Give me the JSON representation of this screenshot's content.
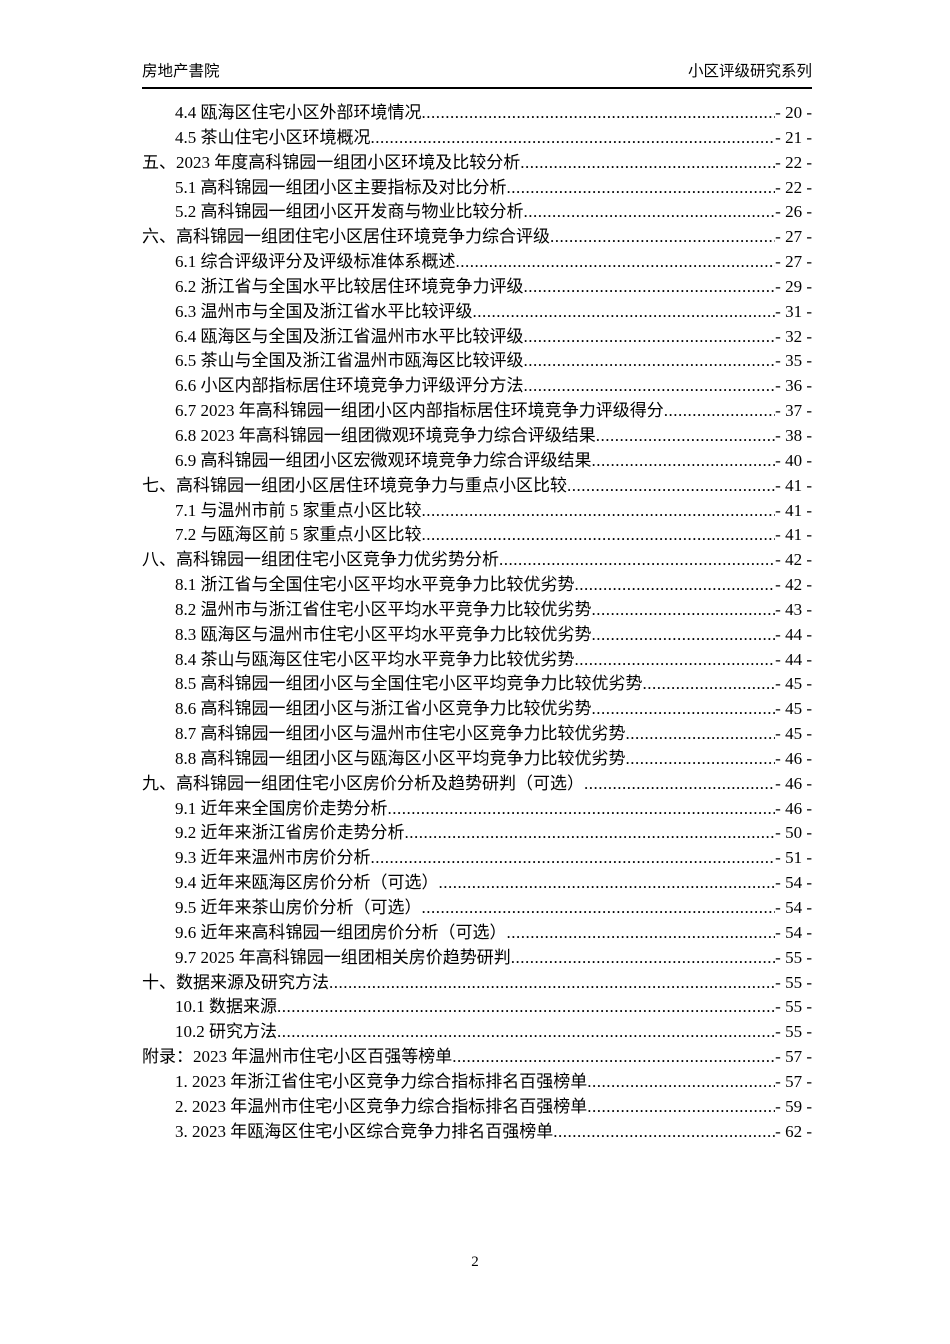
{
  "header": {
    "left_title": "房地产書院",
    "right_title": "小区评级研究系列"
  },
  "toc": {
    "entries": [
      {
        "level": 2,
        "label": "4.4 瓯海区住宅小区外部环境情况",
        "page": "- 20 -"
      },
      {
        "level": 2,
        "label": "4.5 茶山住宅小区环境概况",
        "page": "- 21 -"
      },
      {
        "level": 1,
        "label": "五、2023 年度高科锦园一组团小区环境及比较分析",
        "page": "- 22 -"
      },
      {
        "level": 2,
        "label": "5.1 高科锦园一组团小区主要指标及对比分析",
        "page": "- 22 -"
      },
      {
        "level": 2,
        "label": "5.2 高科锦园一组团小区开发商与物业比较分析",
        "page": "- 26 -"
      },
      {
        "level": 1,
        "label": "六、高科锦园一组团住宅小区居住环境竞争力综合评级",
        "page": "- 27 -"
      },
      {
        "level": 2,
        "label": "6.1 综合评级评分及评级标准体系概述",
        "page": "- 27 -"
      },
      {
        "level": 2,
        "label": "6.2 浙江省与全国水平比较居住环境竞争力评级",
        "page": "- 29 -"
      },
      {
        "level": 2,
        "label": "6.3 温州市与全国及浙江省水平比较评级",
        "page": "- 31 -"
      },
      {
        "level": 2,
        "label": "6.4 瓯海区与全国及浙江省温州市水平比较评级",
        "page": "- 32 -"
      },
      {
        "level": 2,
        "label": "6.5 茶山与全国及浙江省温州市瓯海区比较评级",
        "page": "- 35 -"
      },
      {
        "level": 2,
        "label": "6.6 小区内部指标居住环境竞争力评级评分方法",
        "page": "- 36 -"
      },
      {
        "level": 2,
        "label": "6.7 2023 年高科锦园一组团小区内部指标居住环境竞争力评级得分",
        "page": "- 37 -"
      },
      {
        "level": 2,
        "label": "6.8 2023 年高科锦园一组团微观环境竞争力综合评级结果",
        "page": "- 38 -"
      },
      {
        "level": 2,
        "label": "6.9 高科锦园一组团小区宏微观环境竞争力综合评级结果",
        "page": "- 40 -"
      },
      {
        "level": 1,
        "label": "七、高科锦园一组团小区居住环境竞争力与重点小区比较",
        "page": "- 41 -"
      },
      {
        "level": 2,
        "label": "7.1 与温州市前 5 家重点小区比较",
        "page": "- 41 -"
      },
      {
        "level": 2,
        "label": "7.2 与瓯海区前 5 家重点小区比较",
        "page": "- 41 -"
      },
      {
        "level": 1,
        "label": "八、高科锦园一组团住宅小区竞争力优劣势分析",
        "page": "- 42 -"
      },
      {
        "level": 2,
        "label": "8.1 浙江省与全国住宅小区平均水平竞争力比较优劣势",
        "page": "- 42 -"
      },
      {
        "level": 2,
        "label": "8.2 温州市与浙江省住宅小区平均水平竞争力比较优劣势",
        "page": "- 43 -"
      },
      {
        "level": 2,
        "label": "8.3 瓯海区与温州市住宅小区平均水平竞争力比较优劣势",
        "page": "- 44 -"
      },
      {
        "level": 2,
        "label": "8.4 茶山与瓯海区住宅小区平均水平竞争力比较优劣势",
        "page": "- 44 -"
      },
      {
        "level": 2,
        "label": "8.5 高科锦园一组团小区与全国住宅小区平均竞争力比较优劣势",
        "page": "- 45 -"
      },
      {
        "level": 2,
        "label": "8.6 高科锦园一组团小区与浙江省小区竞争力比较优劣势",
        "page": "- 45 -"
      },
      {
        "level": 2,
        "label": "8.7 高科锦园一组团小区与温州市住宅小区竞争力比较优劣势",
        "page": "- 45 -"
      },
      {
        "level": 2,
        "label": "8.8 高科锦园一组团小区与瓯海区小区平均竞争力比较优劣势",
        "page": "- 46 -"
      },
      {
        "level": 1,
        "label": "九、高科锦园一组团住宅小区房价分析及趋势研判（可选）",
        "page": "- 46 -"
      },
      {
        "level": 2,
        "label": "9.1 近年来全国房价走势分析",
        "page": "- 46 -"
      },
      {
        "level": 2,
        "label": "9.2 近年来浙江省房价走势分析",
        "page": "- 50 -"
      },
      {
        "level": 2,
        "label": "9.3 近年来温州市房价分析",
        "page": "- 51 -"
      },
      {
        "level": 2,
        "label": "9.4 近年来瓯海区房价分析（可选）",
        "page": "- 54 -"
      },
      {
        "level": 2,
        "label": "9.5 近年来茶山房价分析（可选）",
        "page": "- 54 -"
      },
      {
        "level": 2,
        "label": "9.6 近年来高科锦园一组团房价分析（可选）",
        "page": "- 54 -"
      },
      {
        "level": 2,
        "label": "9.7 2025 年高科锦园一组团相关房价趋势研判",
        "page": "- 55 -"
      },
      {
        "level": 1,
        "label": "十、数据来源及研究方法",
        "page": "- 55 -"
      },
      {
        "level": 2,
        "label": "10.1 数据来源",
        "page": "- 55 -"
      },
      {
        "level": 2,
        "label": "10.2 研究方法",
        "page": "- 55 -"
      },
      {
        "level": 1,
        "label": "附录：2023 年温州市住宅小区百强等榜单",
        "page": "- 57 -"
      },
      {
        "level": 2,
        "label": "1. 2023 年浙江省住宅小区竞争力综合指标排名百强榜单",
        "page": "- 57 -"
      },
      {
        "level": 2,
        "label": "2. 2023 年温州市住宅小区竞争力综合指标排名百强榜单",
        "page": "- 59 -"
      },
      {
        "level": 2,
        "label": "3. 2023 年瓯海区住宅小区综合竞争力排名百强榜单",
        "page": "- 62 -"
      }
    ]
  },
  "footer": {
    "page_number": "2"
  }
}
